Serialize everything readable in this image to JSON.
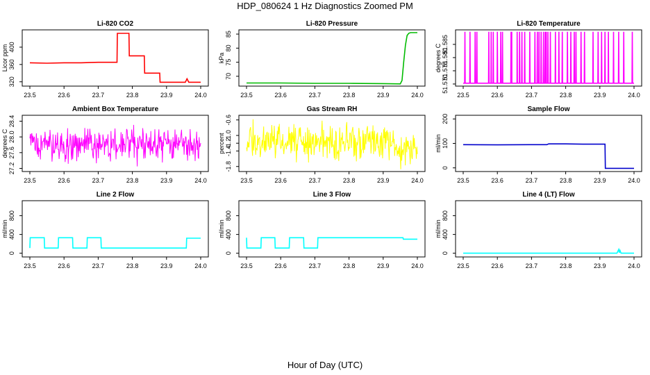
{
  "figure": {
    "title": "HDP_080624  1 Hz Diagnostics Zoomed PM",
    "xlabel": "Hour of Day (UTC)"
  },
  "chart_data": [
    {
      "type": "line",
      "title": "Li-820 CO2",
      "ylabel": "Licor ppm",
      "color": "#ff0000",
      "xlim": [
        23.5,
        24.0
      ],
      "ylim": [
        310,
        440
      ],
      "xticks": [
        "23.5",
        "23.6",
        "23.7",
        "23.8",
        "23.9",
        "24.0"
      ],
      "yticks": [
        320,
        360,
        400
      ],
      "x": [
        23.5,
        23.55,
        23.6,
        23.65,
        23.7,
        23.755,
        23.756,
        23.79,
        23.791,
        23.835,
        23.836,
        23.88,
        23.881,
        23.955,
        23.96,
        23.965,
        24.0
      ],
      "y": [
        364,
        363,
        364,
        364,
        365,
        365,
        432,
        432,
        380,
        380,
        340,
        340,
        319,
        319,
        327,
        319,
        319
      ]
    },
    {
      "type": "line",
      "title": "Li-820 Pressure",
      "ylabel": "kPa",
      "color": "#00bb00",
      "xlim": [
        23.5,
        24.0
      ],
      "ylim": [
        66.5,
        86.5
      ],
      "xticks": [
        "23.5",
        "23.6",
        "23.7",
        "23.8",
        "23.9",
        "24.0"
      ],
      "yticks": [
        70,
        75,
        80,
        85
      ],
      "x": [
        23.5,
        23.6,
        23.7,
        23.8,
        23.9,
        23.95,
        23.955,
        23.96,
        23.965,
        23.97,
        23.975,
        23.98,
        24.0
      ],
      "y": [
        67.6,
        67.6,
        67.5,
        67.5,
        67.4,
        67.3,
        68.5,
        75.0,
        81.0,
        84.5,
        85.3,
        85.5,
        85.5
      ]
    },
    {
      "type": "line",
      "title": "Li-820 Temperature",
      "ylabel": "degrees C",
      "color": "#ff00ff",
      "xlim": [
        23.5,
        24.0
      ],
      "ylim": [
        51.5692,
        51.5905
      ],
      "xticks": [
        "23.5",
        "23.6",
        "23.7",
        "23.8",
        "23.9",
        "24.0"
      ],
      "yticks": [
        "51.570",
        "51.575",
        "51.580",
        "51.585"
      ],
      "base": 51.5703,
      "spike": 51.5898,
      "spikes": [
        23.505,
        23.52,
        23.535,
        23.54,
        23.575,
        23.582,
        23.588,
        23.6,
        23.61,
        23.615,
        23.64,
        23.642,
        23.658,
        23.665,
        23.672,
        23.68,
        23.695,
        23.71,
        23.717,
        23.722,
        23.728,
        23.735,
        23.74,
        23.743,
        23.748,
        23.755,
        23.77,
        23.78,
        23.79,
        23.805,
        23.815,
        23.825,
        23.83,
        23.845,
        23.855,
        23.88,
        23.895,
        23.905,
        23.915,
        23.925,
        23.94,
        23.955,
        23.97,
        23.995
      ]
    },
    {
      "type": "line",
      "title": "Ambient Box Temperature",
      "ylabel": "degrees C",
      "color": "#ff00ff",
      "xlim": [
        23.5,
        24.0
      ],
      "ylim": [
        27.12,
        28.55
      ],
      "xticks": [
        "23.5",
        "23.6",
        "23.7",
        "23.8",
        "23.9",
        "24.0"
      ],
      "yticks": [
        "27.2",
        "27.6",
        "28.0",
        "28.4"
      ],
      "mean": 27.8,
      "band": [
        27.25,
        28.5
      ]
    },
    {
      "type": "line",
      "title": "Gas Stream RH",
      "ylabel": "percent",
      "color": "#ffff00",
      "xlim": [
        23.5,
        24.0
      ],
      "ylim": [
        -1.93,
        -0.48
      ],
      "xticks": [
        "23.5",
        "23.6",
        "23.7",
        "23.8",
        "23.9",
        "24.0"
      ],
      "yticks": [
        "-1.8",
        "-1.4",
        "-1.2",
        "-1.0",
        "-0.6"
      ],
      "mean": -1.15,
      "band": [
        -1.9,
        -0.55
      ]
    },
    {
      "type": "line",
      "title": "Sample Flow",
      "ylabel": "ml/min",
      "color": "#0000cc",
      "xlim": [
        23.5,
        24.0
      ],
      "ylim": [
        -15,
        215
      ],
      "xticks": [
        "23.5",
        "23.6",
        "23.7",
        "23.8",
        "23.9",
        "24.0"
      ],
      "yticks": [
        0,
        100,
        200
      ],
      "x": [
        23.5,
        23.6,
        23.7,
        23.745,
        23.75,
        23.8,
        23.85,
        23.915,
        23.916,
        23.92,
        24.0
      ],
      "y": [
        95,
        94,
        95,
        95,
        98,
        98,
        97,
        97,
        -2,
        -2,
        -2
      ]
    },
    {
      "type": "line",
      "title": "Line 2 Flow",
      "ylabel": "ml/min",
      "color": "#00ffff",
      "xlim": [
        23.5,
        24.0
      ],
      "ylim": [
        -80,
        1120
      ],
      "xticks": [
        "23.5",
        "23.6",
        "23.7",
        "23.8",
        "23.9",
        "24.0"
      ],
      "yticks": [
        0,
        400,
        800
      ],
      "x": [
        23.5,
        23.501,
        23.542,
        23.543,
        23.583,
        23.584,
        23.625,
        23.626,
        23.667,
        23.668,
        23.708,
        23.709,
        23.958,
        23.959,
        24.0
      ],
      "y": [
        110,
        330,
        330,
        110,
        110,
        330,
        330,
        110,
        110,
        330,
        330,
        110,
        110,
        320,
        320
      ]
    },
    {
      "type": "line",
      "title": "Line 3 Flow",
      "ylabel": "ml/min",
      "color": "#00ffff",
      "xlim": [
        23.5,
        24.0
      ],
      "ylim": [
        -80,
        1120
      ],
      "xticks": [
        "23.5",
        "23.6",
        "23.7",
        "23.8",
        "23.9",
        "24.0"
      ],
      "yticks": [
        0,
        400,
        800
      ],
      "x": [
        23.5,
        23.501,
        23.542,
        23.543,
        23.583,
        23.584,
        23.625,
        23.626,
        23.667,
        23.668,
        23.708,
        23.709,
        23.958,
        23.959,
        24.0
      ],
      "y": [
        330,
        110,
        110,
        330,
        330,
        110,
        110,
        330,
        330,
        110,
        110,
        330,
        330,
        300,
        300
      ]
    },
    {
      "type": "line",
      "title": "Line 4 (LT) Flow",
      "ylabel": "ml/min",
      "color": "#00ffff",
      "xlim": [
        23.5,
        24.0
      ],
      "ylim": [
        -80,
        1120
      ],
      "xticks": [
        "23.5",
        "23.6",
        "23.7",
        "23.8",
        "23.9",
        "24.0"
      ],
      "yticks": [
        0,
        400,
        800
      ],
      "x": [
        23.5,
        23.95,
        23.955,
        23.957,
        23.959,
        23.962,
        24.0
      ],
      "y": [
        0,
        0,
        80,
        10,
        60,
        0,
        0
      ]
    }
  ]
}
